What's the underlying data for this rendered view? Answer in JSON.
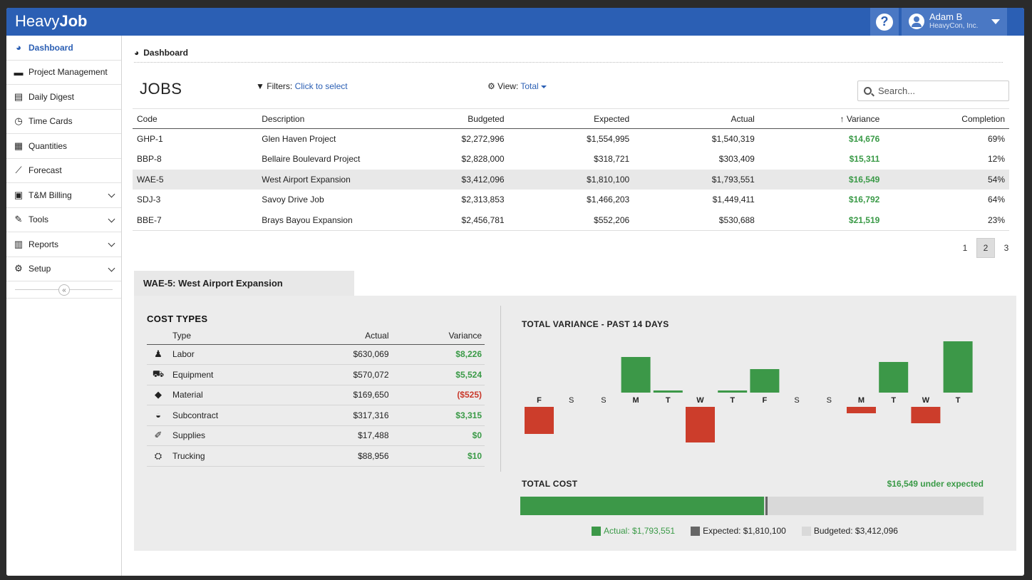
{
  "app": {
    "brand_light": "Heavy",
    "brand_bold": "Job"
  },
  "header": {
    "help_label": "?",
    "user_name": "Adam B",
    "user_company": "HeavyCon, Inc."
  },
  "sidebar": {
    "items": [
      {
        "label": "Dashboard",
        "icon": "dashboard-icon",
        "glyph": "◕",
        "active": true,
        "chev": false
      },
      {
        "label": "Project Management",
        "icon": "briefcase-icon",
        "glyph": "▬",
        "active": false,
        "chev": false
      },
      {
        "label": "Daily Digest",
        "icon": "newspaper-icon",
        "glyph": "▤",
        "active": false,
        "chev": false
      },
      {
        "label": "Time Cards",
        "icon": "clock-icon",
        "glyph": "◷",
        "active": false,
        "chev": false
      },
      {
        "label": "Quantities",
        "icon": "calculator-icon",
        "glyph": "▦",
        "active": false,
        "chev": false
      },
      {
        "label": "Forecast",
        "icon": "line-chart-icon",
        "glyph": "⟋",
        "active": false,
        "chev": false
      },
      {
        "label": "T&M Billing",
        "icon": "billing-icon",
        "glyph": "▣",
        "active": false,
        "chev": true
      },
      {
        "label": "Tools",
        "icon": "wrench-icon",
        "glyph": "✎",
        "active": false,
        "chev": true
      },
      {
        "label": "Reports",
        "icon": "bar-chart-icon",
        "glyph": "▥",
        "active": false,
        "chev": true
      },
      {
        "label": "Setup",
        "icon": "gear-icon",
        "glyph": "⚙",
        "active": false,
        "chev": true
      }
    ],
    "collapse_glyph": "«"
  },
  "breadcrumb": {
    "label": "Dashboard"
  },
  "jobs": {
    "title": "JOBS",
    "filters_label": "Filters:",
    "filters_link": "Click to select",
    "view_label": "View:",
    "view_value": "Total",
    "search_placeholder": "Search...",
    "columns": [
      "Code",
      "Description",
      "Budgeted",
      "Expected",
      "Actual",
      "↑ Variance",
      "Completion"
    ],
    "rows": [
      [
        "GHP-1",
        "Glen Haven Project",
        "$2,272,996",
        "$1,554,995",
        "$1,540,319",
        "$14,676",
        "69%"
      ],
      [
        "BBP-8",
        "Bellaire Boulevard Project",
        "$2,828,000",
        "$318,721",
        "$303,409",
        "$15,311",
        "12%"
      ],
      [
        "WAE-5",
        "West Airport Expansion",
        "$3,412,096",
        "$1,810,100",
        "$1,793,551",
        "$16,549",
        "54%"
      ],
      [
        "SDJ-3",
        "Savoy Drive Job",
        "$2,313,853",
        "$1,466,203",
        "$1,449,411",
        "$16,792",
        "64%"
      ],
      [
        "BBE-7",
        "Brays Bayou Expansion",
        "$2,456,781",
        "$552,206",
        "$530,688",
        "$21,519",
        "23%"
      ]
    ],
    "selected_row": 2,
    "pages": [
      "1",
      "2",
      "3"
    ],
    "current_page": 1
  },
  "detail": {
    "tab_title": "WAE-5: West Airport Expansion",
    "cost_types": {
      "title": "COST TYPES",
      "columns": [
        "Type",
        "Actual",
        "Variance"
      ],
      "rows": [
        {
          "type": "Labor",
          "icon": "person-icon",
          "glyph": "♟",
          "actual": "$630,069",
          "variance": "$8,226",
          "neg": false
        },
        {
          "type": "Equipment",
          "icon": "excavator-icon",
          "glyph": "⛟",
          "actual": "$570,072",
          "variance": "$5,524",
          "neg": false
        },
        {
          "type": "Material",
          "icon": "material-icon",
          "glyph": "◆",
          "actual": "$169,650",
          "variance": "($525)",
          "neg": true
        },
        {
          "type": "Subcontract",
          "icon": "hard-hat-icon",
          "glyph": "◒",
          "actual": "$317,316",
          "variance": "$3,315",
          "neg": false
        },
        {
          "type": "Supplies",
          "icon": "supplies-icon",
          "glyph": "✐",
          "actual": "$17,488",
          "variance": "$0",
          "neg": false
        },
        {
          "type": "Trucking",
          "icon": "trucking-icon",
          "glyph": "⛭",
          "actual": "$88,956",
          "variance": "$10",
          "neg": false
        }
      ]
    },
    "variance_title": "TOTAL VARIANCE - PAST 14 DAYS",
    "total_cost_title": "TOTAL COST",
    "under_expected": "$16,549 under expected",
    "total_cost": {
      "actual_fraction": 0.526,
      "expected_fraction": 0.53
    },
    "legend": {
      "actual": "Actual: $1,793,551",
      "expected": "Expected: $1,810,100",
      "budgeted": "Budgeted: $3,412,096"
    }
  },
  "colors": {
    "brand": "#2b5fb4",
    "positive": "#3c9848",
    "negative": "#cc3d2b",
    "expected": "#666666",
    "budgeted": "#d9d9d9"
  },
  "chart_data": {
    "type": "bar",
    "title": "TOTAL VARIANCE - PAST 14 DAYS",
    "categories": [
      "F",
      "S",
      "S",
      "M",
      "T",
      "W",
      "T",
      "F",
      "S",
      "S",
      "M",
      "T",
      "W",
      "T"
    ],
    "values": [
      -38,
      0,
      0,
      50,
      3,
      -50,
      3,
      33,
      0,
      0,
      -9,
      43,
      -23,
      72
    ],
    "xlabel": "",
    "ylabel": "",
    "ylim": [
      -60,
      80
    ],
    "grid": false
  }
}
